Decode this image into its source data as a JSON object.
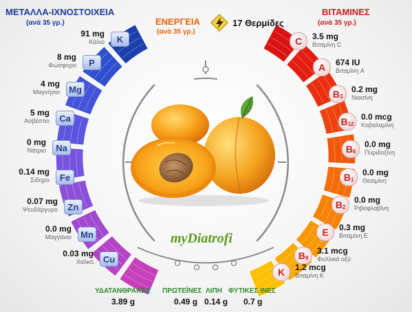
{
  "minerals": {
    "title": "ΜΕΤΑΛΛΑ-ΙΧΝΟΣΤΟΙΧΕΙΑ",
    "subtitle": "(ανά 35 γρ.)",
    "items": [
      {
        "symbol": "K",
        "value": "91 mg",
        "name": "Κάλιο"
      },
      {
        "symbol": "P",
        "value": "8 mg",
        "name": "Φώσφορο"
      },
      {
        "symbol": "Mg",
        "value": "4 mg",
        "name": "Μαγνήσιο"
      },
      {
        "symbol": "Ca",
        "value": "5 mg",
        "name": "Ασβέστιο"
      },
      {
        "symbol": "Na",
        "value": "0 mg",
        "name": "Νάτριο"
      },
      {
        "symbol": "Fe",
        "value": "0.14 mg",
        "name": "Σίδηρο"
      },
      {
        "symbol": "Zn",
        "value": "0.07 mg",
        "name": "Ψευδάργυρο"
      },
      {
        "symbol": "Mn",
        "value": "0.0 mg",
        "name": "Μαγγάνιο"
      },
      {
        "symbol": "Cu",
        "value": "0.03 mg",
        "name": "Χαλκό"
      }
    ],
    "colors": [
      "#1d3fae",
      "#2f4fcf",
      "#4453d8",
      "#5b56e0",
      "#7654e0",
      "#8c4fd9",
      "#a049d0",
      "#b543c6",
      "#c83fba"
    ]
  },
  "energy": {
    "title": "ΕΝΕΡΓΕΙΑ",
    "subtitle": "(ανά 35 γρ.)",
    "value": "17 Θερμίδες",
    "icon": "lightning-icon"
  },
  "vitamins": {
    "title": "ΒΙΤΑΜΙΝΕΣ",
    "subtitle": "(ανά 35 γρ.)",
    "items": [
      {
        "letter": "C",
        "sub": "",
        "value": "3.5 mg",
        "name": "Βιταμίνη C"
      },
      {
        "letter": "A",
        "sub": "",
        "value": "674 IU",
        "name": "Βιταμίνη A"
      },
      {
        "letter": "B",
        "sub": "3",
        "value": "0.2 mg",
        "name": "Νιασίνη"
      },
      {
        "letter": "B",
        "sub": "12",
        "value": "0.0 mcg",
        "name": "Κοβαλαμίνη"
      },
      {
        "letter": "B",
        "sub": "6",
        "value": "0.0 mg",
        "name": "Πυριδοξίνη"
      },
      {
        "letter": "B",
        "sub": "1",
        "value": "0.0 mg",
        "name": "Θειαμίνη"
      },
      {
        "letter": "B",
        "sub": "2",
        "value": "0.0 mg",
        "name": "Ριβοφλαβίνη"
      },
      {
        "letter": "E",
        "sub": "",
        "value": "0.3 mg",
        "name": "Βιταμίνη E"
      },
      {
        "letter": "B",
        "sub": "9",
        "value": "3.1 mcg",
        "name": "Φυλλικό οξύ"
      },
      {
        "letter": "K",
        "sub": "",
        "value": "1.2 mcg",
        "name": "Βιταμίνη K"
      }
    ],
    "colors": [
      "#d91313",
      "#e51c12",
      "#ea2e10",
      "#ee430e",
      "#f2580c",
      "#f56d0a",
      "#f78208",
      "#f99706",
      "#fbab04",
      "#fdbf02"
    ]
  },
  "macros": [
    {
      "name": "ΥΔΑΤΑΝΘΡΑΚΕΣ",
      "value": "3.89 g"
    },
    {
      "name": "ΠΡΩΤΕΪΝΕΣ",
      "value": "0.49 g"
    },
    {
      "name": "ΛΙΠΗ",
      "value": "0.14 g"
    },
    {
      "name": "ΦΥΤΙΚΕΣ ΙΝΕΣ",
      "value": "0.7 g"
    }
  ],
  "logo": {
    "text": "myDiatrofi"
  },
  "colors": {
    "mineral_title": "#1a3aa0",
    "energy_title": "#e8620a",
    "vitamin_title": "#c62020",
    "macro_label": "#2c8a2c"
  }
}
